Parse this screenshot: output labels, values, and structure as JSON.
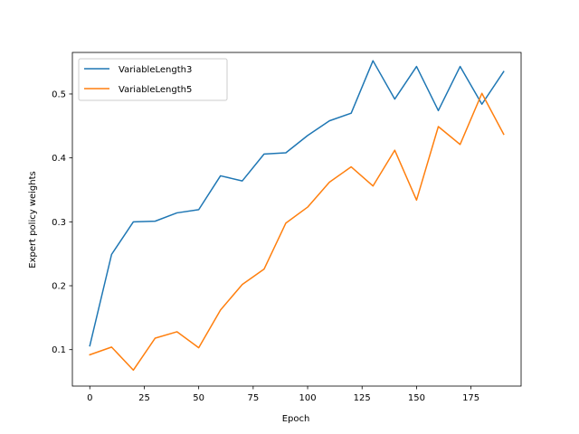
{
  "chart_data": {
    "type": "line",
    "title": "",
    "xlabel": "Epoch",
    "ylabel": "Expert policy weights",
    "x": [
      0,
      10,
      20,
      30,
      40,
      50,
      60,
      70,
      80,
      90,
      100,
      110,
      120,
      130,
      140,
      150,
      160,
      170,
      180,
      190
    ],
    "xlim": [
      -8,
      198
    ],
    "ylim": [
      0.043,
      0.565
    ],
    "xticks": [
      0,
      25,
      50,
      75,
      100,
      125,
      150,
      175
    ],
    "yticks": [
      0.1,
      0.2,
      0.3,
      0.4,
      0.5
    ],
    "xtick_labels": [
      "0",
      "25",
      "50",
      "75",
      "100",
      "125",
      "150",
      "175"
    ],
    "ytick_labels": [
      "0.1",
      "0.2",
      "0.3",
      "0.4",
      "0.5"
    ],
    "grid": false,
    "legend_position": "upper-left",
    "series": [
      {
        "name": "VariableLength3",
        "color": "#1f77b4",
        "values": [
          0.106,
          0.249,
          0.3,
          0.301,
          0.314,
          0.319,
          0.372,
          0.364,
          0.406,
          0.408,
          0.435,
          0.458,
          0.47,
          0.552,
          0.492,
          0.543,
          0.474,
          0.543,
          0.484,
          0.535
        ]
      },
      {
        "name": "VariableLength5",
        "color": "#ff7f0e",
        "values": [
          0.092,
          0.104,
          0.068,
          0.118,
          0.128,
          0.103,
          0.162,
          0.202,
          0.226,
          0.298,
          0.323,
          0.362,
          0.386,
          0.356,
          0.412,
          0.334,
          0.449,
          0.421,
          0.501,
          0.437
        ]
      }
    ]
  }
}
